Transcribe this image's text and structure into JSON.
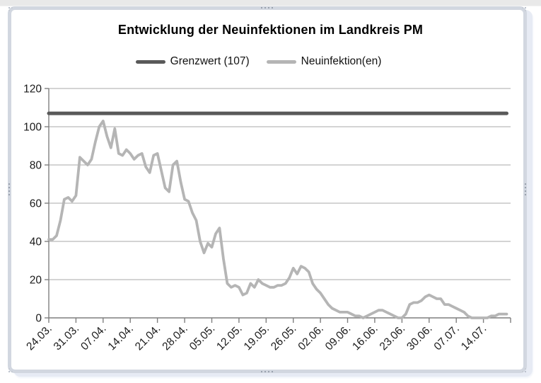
{
  "chart_data": {
    "type": "line",
    "title": "Entwicklung der Neuinfektionen im Landkreis PM",
    "legend_position": "top",
    "grid": "horizontal",
    "ylim": [
      0,
      120
    ],
    "y_ticks": [
      0,
      20,
      40,
      60,
      80,
      100,
      120
    ],
    "x_tick_labels": [
      "24.03.",
      "31.03.",
      "07.04.",
      "14.04.",
      "21.04.",
      "28.04.",
      "05.05.",
      "12.05.",
      "19.05.",
      "26.05.",
      "02.06.",
      "09.06.",
      "16.06.",
      "23.06.",
      "30.06.",
      "07.07.",
      "14.07."
    ],
    "x_tick_step_days": 7,
    "x_axis_total_days": 119,
    "series": [
      {
        "name": "Grenzwert (107)",
        "type": "threshold",
        "value": 107,
        "color": "#595959",
        "stroke_width": 5
      },
      {
        "name": "Neuinfektion(en)",
        "type": "daily",
        "start_label": "24.03.",
        "color": "#b5b5b5",
        "stroke_width": 3.8,
        "values": [
          41,
          41,
          43,
          51,
          62,
          63,
          61,
          64,
          84,
          82,
          80,
          83,
          92,
          100,
          103,
          95,
          89,
          99,
          86,
          85,
          88,
          86,
          83,
          85,
          86,
          79,
          76,
          85,
          86,
          77,
          68,
          66,
          80,
          82,
          71,
          62,
          61,
          55,
          51,
          40,
          34,
          39,
          37,
          44,
          47,
          31,
          18,
          16,
          17,
          16,
          12,
          13,
          18,
          16,
          20,
          18,
          17,
          16,
          16,
          17,
          17,
          18,
          21,
          26,
          23,
          27,
          26,
          24,
          18,
          15,
          13,
          10,
          7,
          5,
          4,
          3,
          3,
          3,
          2,
          1,
          1,
          0,
          1,
          2,
          3,
          4,
          4,
          3,
          2,
          1,
          0,
          0,
          2,
          7,
          8,
          8,
          9,
          11,
          12,
          11,
          10,
          10,
          7,
          7,
          6,
          5,
          4,
          3,
          1,
          0,
          0,
          0,
          0,
          0,
          1,
          1,
          2,
          2,
          2
        ]
      }
    ],
    "colors": {
      "gridline": "#a8a8a8",
      "axis": "#7f7f7f",
      "label_text": "#1a1a1a",
      "title_text": "#000000",
      "frame_border": "#d2d7e0",
      "frame_shadow": "#e7ebf4",
      "grip_dots": "#9aa2ae",
      "background": "#ffffff",
      "top_strip": "#e9e9e9"
    }
  }
}
